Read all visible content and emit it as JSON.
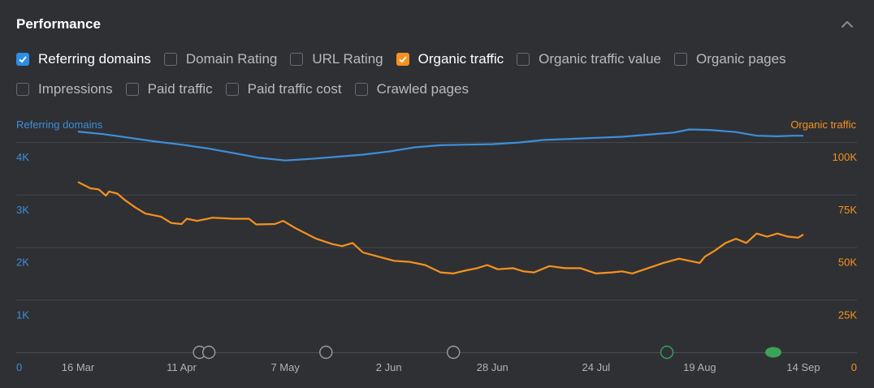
{
  "panel": {
    "title": "Performance"
  },
  "metrics": [
    {
      "label": "Referring domains",
      "checked": true,
      "color": "#2d8ee6"
    },
    {
      "label": "Domain Rating",
      "checked": false
    },
    {
      "label": "URL Rating",
      "checked": false
    },
    {
      "label": "Organic traffic",
      "checked": true,
      "color": "#f5921f"
    },
    {
      "label": "Organic traffic value",
      "checked": false
    },
    {
      "label": "Organic pages",
      "checked": false
    },
    {
      "label": "Impressions",
      "checked": false
    },
    {
      "label": "Paid traffic",
      "checked": false
    },
    {
      "label": "Paid traffic cost",
      "checked": false
    },
    {
      "label": "Crawled pages",
      "checked": false
    }
  ],
  "chart_data": {
    "type": "line",
    "grid": true,
    "x_labels": [
      "16 Mar",
      "11 Apr",
      "7 May",
      "2 Jun",
      "28 Jun",
      "24 Jul",
      "19 Aug",
      "14 Sep"
    ],
    "left_axis": {
      "label": "Referring domains",
      "color": "#3d8fd9",
      "ticks": [
        "0",
        "1K",
        "2K",
        "3K",
        "4K"
      ],
      "range": [
        0,
        4000
      ]
    },
    "right_axis": {
      "label": "Organic traffic",
      "color": "#f5921f",
      "ticks": [
        "0",
        "25K",
        "50K",
        "75K",
        "100K"
      ],
      "range": [
        0,
        100000
      ]
    },
    "x_range": [
      0,
      7
    ],
    "series": [
      {
        "name": "Referring domains",
        "axis": "left",
        "color": "#3d8fd9",
        "points": [
          [
            0,
            4200
          ],
          [
            0.25,
            4150
          ],
          [
            0.5,
            4080
          ],
          [
            0.75,
            4010
          ],
          [
            1,
            3950
          ],
          [
            1.25,
            3880
          ],
          [
            1.5,
            3790
          ],
          [
            1.75,
            3700
          ],
          [
            2,
            3650
          ],
          [
            2.25,
            3680
          ],
          [
            2.5,
            3720
          ],
          [
            2.75,
            3760
          ],
          [
            3,
            3820
          ],
          [
            3.25,
            3900
          ],
          [
            3.5,
            3940
          ],
          [
            3.75,
            3950
          ],
          [
            4,
            3960
          ],
          [
            4.25,
            3990
          ],
          [
            4.5,
            4040
          ],
          [
            4.75,
            4060
          ],
          [
            5,
            4080
          ],
          [
            5.25,
            4100
          ],
          [
            5.5,
            4140
          ],
          [
            5.75,
            4180
          ],
          [
            5.9,
            4240
          ],
          [
            6.1,
            4230
          ],
          [
            6.35,
            4190
          ],
          [
            6.55,
            4120
          ],
          [
            6.75,
            4110
          ],
          [
            6.9,
            4120
          ],
          [
            7,
            4120
          ]
        ]
      },
      {
        "name": "Organic traffic",
        "axis": "right",
        "color": "#f5921f",
        "points": [
          [
            0,
            81000
          ],
          [
            0.12,
            78000
          ],
          [
            0.2,
            77500
          ],
          [
            0.27,
            74500
          ],
          [
            0.3,
            76500
          ],
          [
            0.38,
            75500
          ],
          [
            0.45,
            72500
          ],
          [
            0.55,
            69000
          ],
          [
            0.65,
            66000
          ],
          [
            0.8,
            64500
          ],
          [
            0.9,
            61500
          ],
          [
            1.0,
            61000
          ],
          [
            1.05,
            63500
          ],
          [
            1.15,
            62500
          ],
          [
            1.3,
            64000
          ],
          [
            1.5,
            63500
          ],
          [
            1.65,
            63500
          ],
          [
            1.72,
            60800
          ],
          [
            1.9,
            61000
          ],
          [
            1.98,
            62500
          ],
          [
            2.1,
            59000
          ],
          [
            2.3,
            54000
          ],
          [
            2.45,
            51500
          ],
          [
            2.55,
            50500
          ],
          [
            2.65,
            52000
          ],
          [
            2.75,
            47500
          ],
          [
            2.9,
            45500
          ],
          [
            3.05,
            43500
          ],
          [
            3.2,
            43000
          ],
          [
            3.35,
            41500
          ],
          [
            3.5,
            38000
          ],
          [
            3.62,
            37500
          ],
          [
            3.75,
            39000
          ],
          [
            3.85,
            40000
          ],
          [
            3.95,
            41500
          ],
          [
            4.05,
            39500
          ],
          [
            4.2,
            40000
          ],
          [
            4.3,
            38500
          ],
          [
            4.4,
            38000
          ],
          [
            4.55,
            41000
          ],
          [
            4.7,
            40000
          ],
          [
            4.85,
            40000
          ],
          [
            5.0,
            37500
          ],
          [
            5.15,
            38000
          ],
          [
            5.25,
            38500
          ],
          [
            5.35,
            37500
          ],
          [
            5.5,
            40000
          ],
          [
            5.65,
            42500
          ],
          [
            5.8,
            44500
          ],
          [
            5.9,
            43500
          ],
          [
            6.0,
            42500
          ],
          [
            6.05,
            45500
          ],
          [
            6.15,
            48500
          ],
          [
            6.25,
            52000
          ],
          [
            6.35,
            54000
          ],
          [
            6.45,
            52000
          ],
          [
            6.55,
            56500
          ],
          [
            6.65,
            55000
          ],
          [
            6.75,
            56500
          ],
          [
            6.85,
            55000
          ],
          [
            6.95,
            54500
          ],
          [
            7.0,
            56000
          ]
        ]
      }
    ]
  }
}
